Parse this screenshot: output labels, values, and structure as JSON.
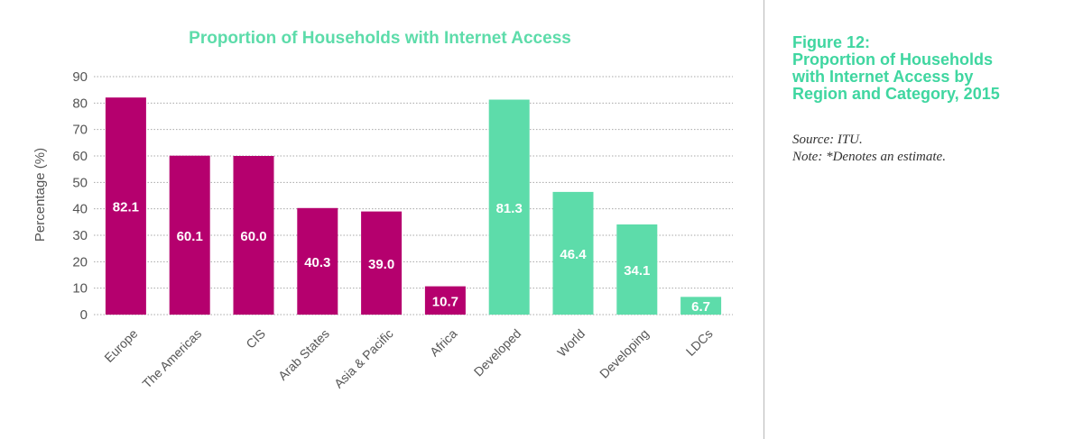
{
  "chart_data": {
    "type": "bar",
    "title": "Proportion of Households with Internet Access",
    "ylabel": "Percentage (%)",
    "xlabel": "",
    "ylim": [
      0,
      90
    ],
    "yticks": [
      0,
      10,
      20,
      30,
      40,
      50,
      60,
      70,
      80,
      90
    ],
    "grid": true,
    "categories": [
      "Europe",
      "The Americas",
      "CIS",
      "Arab States",
      "Asia & Pacific",
      "Africa",
      "Developed",
      "World",
      "Developing",
      "LDCs"
    ],
    "values": [
      82.1,
      60.1,
      60.0,
      40.3,
      39.0,
      10.7,
      81.3,
      46.4,
      34.1,
      6.7
    ],
    "value_labels": [
      "82.1",
      "60.1",
      "60.0",
      "40.3",
      "39.0",
      "10.7",
      "81.3",
      "46.4",
      "34.1",
      "6.7"
    ],
    "groups": [
      "region",
      "region",
      "region",
      "region",
      "region",
      "region",
      "category",
      "category",
      "category",
      "category"
    ],
    "colors": {
      "region": "#b5006e",
      "category": "#5ddcaa",
      "title": "#5ddcaa"
    }
  },
  "sidebar": {
    "title_lines": [
      "Figure 12:",
      "Proportion of Households",
      "with Internet Access by",
      "Region and Category, 2015"
    ],
    "source": "Source: ITU.",
    "note": "Note: *Denotes an estimate."
  }
}
